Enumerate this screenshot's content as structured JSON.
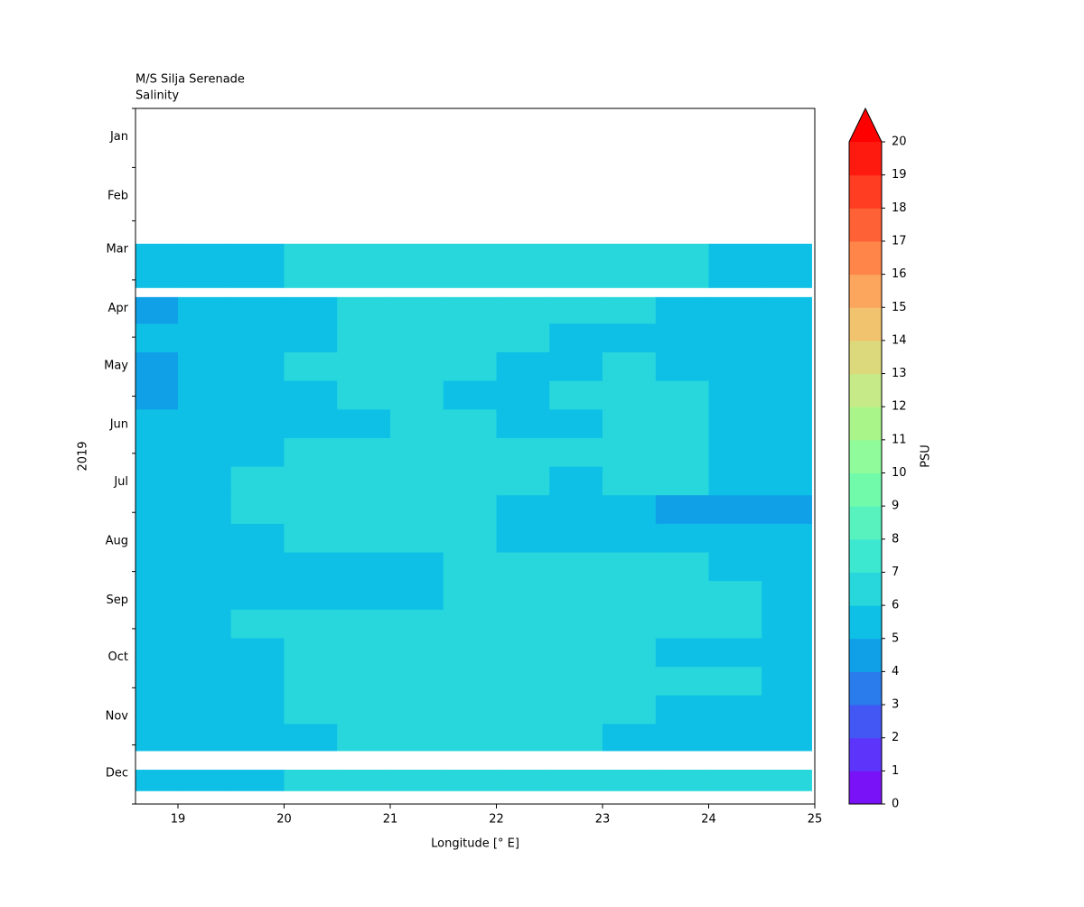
{
  "chart_data": {
    "type": "contour",
    "title": "M/S Silja Serenade",
    "subtitle": "Salinity",
    "xlabel": "Longitude [° E]",
    "ylabel": "2019",
    "colorbar_label": "PSU",
    "xlim": [
      18.6,
      25
    ],
    "xticks": [
      19,
      20,
      21,
      22,
      23,
      24,
      25
    ],
    "ylim": [
      0,
      365
    ],
    "y_inverted": true,
    "yticks": [
      {
        "value": 15,
        "label": "Jan"
      },
      {
        "value": 46,
        "label": "Feb"
      },
      {
        "value": 74,
        "label": "Mar"
      },
      {
        "value": 105,
        "label": "Apr"
      },
      {
        "value": 135,
        "label": "May"
      },
      {
        "value": 166,
        "label": "Jun"
      },
      {
        "value": 196,
        "label": "Jul"
      },
      {
        "value": 227,
        "label": "Aug"
      },
      {
        "value": 258,
        "label": "Sep"
      },
      {
        "value": 288,
        "label": "Oct"
      },
      {
        "value": 319,
        "label": "Nov"
      },
      {
        "value": 349,
        "label": "Dec"
      }
    ],
    "y_minor_ticks": [
      0,
      31,
      59,
      90,
      120,
      151,
      181,
      212,
      243,
      273,
      304,
      334,
      365
    ],
    "x_edges": [
      18.6,
      19.0,
      19.5,
      20.0,
      20.5,
      21.0,
      21.5,
      22.0,
      22.5,
      23.0,
      23.5,
      24.0,
      24.5,
      24.97
    ],
    "y_edges": [
      71,
      94,
      99,
      113,
      128,
      143,
      158,
      173,
      188,
      203,
      218,
      233,
      248,
      263,
      278,
      293,
      308,
      323,
      337,
      347,
      358
    ],
    "z": [
      [
        5.5,
        5.5,
        5.5,
        6.5,
        6.5,
        6.5,
        6.5,
        6.5,
        6.5,
        6.5,
        6.5,
        5.5,
        5.5
      ],
      [
        null,
        null,
        null,
        null,
        null,
        null,
        null,
        null,
        null,
        null,
        null,
        null,
        null
      ],
      [
        4.5,
        5.5,
        5.5,
        5.5,
        6.5,
        6.5,
        6.5,
        6.5,
        6.5,
        6.5,
        5.5,
        5.5,
        5.5
      ],
      [
        5.5,
        5.5,
        5.5,
        5.5,
        6.5,
        6.5,
        6.5,
        6.5,
        5.5,
        5.5,
        5.5,
        5.5,
        5.5
      ],
      [
        4.5,
        5.5,
        5.5,
        6.5,
        6.5,
        6.5,
        6.5,
        5.5,
        5.5,
        6.5,
        5.5,
        5.5,
        5.5
      ],
      [
        4.5,
        5.5,
        5.5,
        5.5,
        6.5,
        6.5,
        5.5,
        5.5,
        6.5,
        6.5,
        6.5,
        5.5,
        5.5
      ],
      [
        5.5,
        5.5,
        5.5,
        5.5,
        5.5,
        6.5,
        6.5,
        5.5,
        5.5,
        6.5,
        6.5,
        5.5,
        5.5
      ],
      [
        5.5,
        5.5,
        5.5,
        6.5,
        6.5,
        6.5,
        6.5,
        6.5,
        6.5,
        6.5,
        6.5,
        5.5,
        5.5
      ],
      [
        5.5,
        5.5,
        6.5,
        6.5,
        6.5,
        6.5,
        6.5,
        6.5,
        5.5,
        6.5,
        6.5,
        5.5,
        5.5
      ],
      [
        5.5,
        5.5,
        6.5,
        6.5,
        6.5,
        6.5,
        6.5,
        5.5,
        5.5,
        5.5,
        4.5,
        4.5,
        4.5
      ],
      [
        5.5,
        5.5,
        5.5,
        6.5,
        6.5,
        6.5,
        6.5,
        5.5,
        5.5,
        5.5,
        5.5,
        5.5,
        5.5
      ],
      [
        5.5,
        5.5,
        5.5,
        5.5,
        5.5,
        5.5,
        6.5,
        6.5,
        6.5,
        6.5,
        6.5,
        5.5,
        5.5
      ],
      [
        5.5,
        5.5,
        5.5,
        5.5,
        5.5,
        5.5,
        6.5,
        6.5,
        6.5,
        6.5,
        6.5,
        6.5,
        5.5
      ],
      [
        5.5,
        5.5,
        6.5,
        6.5,
        6.5,
        6.5,
        6.5,
        6.5,
        6.5,
        6.5,
        6.5,
        6.5,
        5.5
      ],
      [
        5.5,
        5.5,
        5.5,
        6.5,
        6.5,
        6.5,
        6.5,
        6.5,
        6.5,
        6.5,
        5.5,
        5.5,
        5.5
      ],
      [
        5.5,
        5.5,
        5.5,
        6.5,
        6.5,
        6.5,
        6.5,
        6.5,
        6.5,
        6.5,
        6.5,
        6.5,
        5.5
      ],
      [
        5.5,
        5.5,
        5.5,
        6.5,
        6.5,
        6.5,
        6.5,
        6.5,
        6.5,
        6.5,
        5.5,
        5.5,
        5.5
      ],
      [
        5.5,
        5.5,
        5.5,
        5.5,
        6.5,
        6.5,
        6.5,
        6.5,
        6.5,
        5.5,
        5.5,
        5.5,
        5.5
      ],
      [
        null,
        null,
        null,
        null,
        null,
        null,
        null,
        null,
        null,
        null,
        null,
        null,
        null
      ],
      [
        5.5,
        5.5,
        5.5,
        6.5,
        6.5,
        6.5,
        6.5,
        6.5,
        6.5,
        6.5,
        6.5,
        6.5,
        6.5
      ]
    ],
    "levels": [
      0,
      1,
      2,
      3,
      4,
      5,
      6,
      7,
      8,
      9,
      10,
      11,
      12,
      13,
      14,
      15,
      16,
      17,
      18,
      19,
      20
    ],
    "colors": [
      "#7a12f8",
      "#5d34fa",
      "#4257f4",
      "#2a7bec",
      "#10a0e8",
      "#0ec0e6",
      "#27d7dc",
      "#3ce8d0",
      "#57f2bd",
      "#72faab",
      "#8ffb9b",
      "#aaf58a",
      "#c5ea87",
      "#dbd97c",
      "#f2c36e",
      "#fca55d",
      "#ff8548",
      "#ff6136",
      "#ff3d22",
      "#ff1a10"
    ],
    "extend_color": "#ff0000"
  }
}
